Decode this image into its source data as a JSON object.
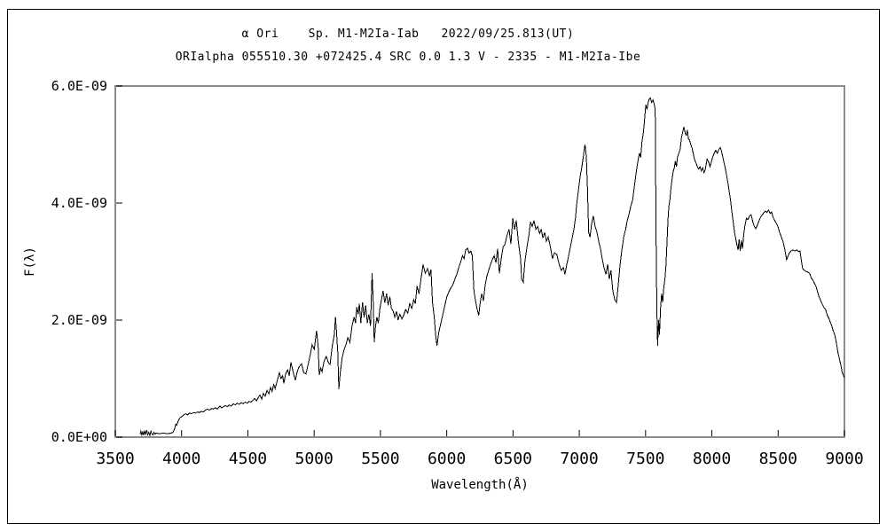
{
  "chart_data": {
    "type": "line",
    "title_line1": "α Ori    Sp. M1-M2Ia-Iab   2022/09/25.813(UT)",
    "title_line2": "ORIalpha 055510.30 +072425.4 SRC 0.0 1.3 V - 2335 - M1-M2Ia-Ibe",
    "xlabel": "Wavelength(Å)",
    "ylabel": "F(λ)",
    "xlim": [
      3500,
      9000
    ],
    "ylim_1e9": [
      0,
      6
    ],
    "grid": false,
    "legend": null,
    "colors": {
      "line": "#000000",
      "frame": "#8c8c8c",
      "background": "#ffffff",
      "text": "#000000"
    },
    "x_ticks": [
      3500,
      4000,
      4500,
      5000,
      5500,
      6000,
      6500,
      7000,
      7500,
      8000,
      8500,
      9000
    ],
    "y_ticks": [
      {
        "value_1e9": 0,
        "label": "0.0E+00"
      },
      {
        "value_1e9": 2,
        "label": "2.0E-09"
      },
      {
        "value_1e9": 4,
        "label": "4.0E-09"
      },
      {
        "value_1e9": 6,
        "label": "6.0E-09"
      }
    ],
    "series": [
      {
        "name": "spectrum-flux",
        "x": [
          3687,
          3693,
          3700,
          3707,
          3714,
          3721,
          3729,
          3737,
          3745,
          3753,
          3761,
          3769,
          3776,
          3784,
          3792,
          3801,
          3810,
          3821,
          3840,
          3861,
          3882,
          3903,
          3921,
          3935,
          3948,
          3956,
          3963,
          3975,
          3988,
          4001,
          4015,
          4030,
          4045,
          4060,
          4075,
          4090,
          4105,
          4120,
          4135,
          4150,
          4165,
          4180,
          4195,
          4210,
          4225,
          4240,
          4255,
          4270,
          4289,
          4302,
          4316,
          4330,
          4345,
          4360,
          4375,
          4390,
          4405,
          4420,
          4435,
          4450,
          4465,
          4480,
          4495,
          4510,
          4524,
          4540,
          4551,
          4565,
          4580,
          4591,
          4605,
          4617,
          4630,
          4645,
          4658,
          4671,
          4683,
          4695,
          4706,
          4720,
          4738,
          4750,
          4762,
          4771,
          4785,
          4800,
          4812,
          4825,
          4841,
          4858,
          4872,
          4886,
          4905,
          4921,
          4938,
          4955,
          4970,
          4985,
          5001,
          5018,
          5030,
          5038,
          5049,
          5060,
          5075,
          5092,
          5106,
          5120,
          5136,
          5152,
          5161,
          5169,
          5178,
          5186,
          5197,
          5211,
          5226,
          5240,
          5254,
          5270,
          5286,
          5301,
          5312,
          5321,
          5331,
          5341,
          5352,
          5365,
          5377,
          5389,
          5401,
          5413,
          5425,
          5437,
          5446,
          5453,
          5463,
          5473,
          5484,
          5496,
          5508,
          5520,
          5533,
          5546,
          5558,
          5571,
          5583,
          5596,
          5608,
          5621,
          5633,
          5646,
          5661,
          5675,
          5690,
          5706,
          5721,
          5736,
          5751,
          5763,
          5776,
          5791,
          5806,
          5822,
          5838,
          5855,
          5869,
          5881,
          5893,
          5906,
          5916,
          5926,
          5941,
          5956,
          5971,
          5986,
          6001,
          6016,
          6031,
          6046,
          6061,
          6076,
          6091,
          6106,
          6119,
          6131,
          6143,
          6156,
          6168,
          6181,
          6193,
          6205,
          6216,
          6228,
          6241,
          6253,
          6264,
          6277,
          6290,
          6303,
          6316,
          6330,
          6344,
          6358,
          6371,
          6384,
          6397,
          6411,
          6425,
          6440,
          6455,
          6470,
          6484,
          6498,
          6512,
          6525,
          6540,
          6557,
          6565,
          6577,
          6590,
          6605,
          6620,
          6632,
          6645,
          6658,
          6672,
          6686,
          6700,
          6713,
          6726,
          6739,
          6752,
          6765,
          6779,
          6798,
          6813,
          6831,
          6848,
          6865,
          6880,
          6892,
          6906,
          6920,
          6933,
          6946,
          6959,
          6971,
          6981,
          6993,
          7006,
          7018,
          7031,
          7043,
          7053,
          7061,
          7071,
          7081,
          7093,
          7106,
          7119,
          7131,
          7146,
          7160,
          7173,
          7186,
          7201,
          7214,
          7226,
          7239,
          7253,
          7268,
          7281,
          7294,
          7308,
          7321,
          7335,
          7349,
          7362,
          7376,
          7389,
          7402,
          7416,
          7429,
          7441,
          7453,
          7463,
          7473,
          7483,
          7493,
          7502,
          7511,
          7519,
          7528,
          7536,
          7546,
          7556,
          7566,
          7573,
          7579,
          7585,
          7591,
          7598,
          7605,
          7613,
          7621,
          7629,
          7637,
          7646,
          7653,
          7661,
          7669,
          7676,
          7683,
          7691,
          7699,
          7709,
          7717,
          7725,
          7733,
          7741,
          7751,
          7761,
          7771,
          7781,
          7789,
          7797,
          7806,
          7816,
          7823,
          7831,
          7841,
          7850,
          7859,
          7870,
          7881,
          7891,
          7901,
          7911,
          7921,
          7931,
          7941,
          7951,
          7964,
          7976,
          7986,
          7996,
          8006,
          8017,
          8029,
          8041,
          8053,
          8063,
          8071,
          8081,
          8091,
          8101,
          8111,
          8121,
          8131,
          8141,
          8151,
          8161,
          8171,
          8181,
          8190,
          8198,
          8206,
          8214,
          8223,
          8231,
          8240,
          8250,
          8261,
          8272,
          8284,
          8296,
          8309,
          8320,
          8331,
          8343,
          8356,
          8368,
          8381,
          8393,
          8404,
          8416,
          8428,
          8440,
          8451,
          8463,
          8475,
          8487,
          8498,
          8511,
          8524,
          8538,
          8551,
          8564,
          8576,
          8585,
          8598,
          8611,
          8626,
          8640,
          8653,
          8665,
          8676,
          8685,
          8698,
          8711,
          8723,
          8737,
          8750,
          8763,
          8775,
          8785,
          8795,
          8805,
          8818,
          8831,
          8845,
          8858,
          8871,
          8884,
          8896,
          8905,
          8915,
          8925,
          8934,
          8942,
          8950,
          8958,
          8966,
          8974,
          8982,
          8991,
          9000
        ],
        "flux_1e9": [
          0.05,
          0.1,
          0.04,
          0.09,
          0.03,
          0.11,
          0.05,
          0.12,
          0.04,
          0.08,
          0.03,
          0.1,
          0.06,
          0.04,
          0.08,
          0.05,
          0.07,
          0.06,
          0.06,
          0.07,
          0.06,
          0.06,
          0.07,
          0.08,
          0.15,
          0.22,
          0.2,
          0.28,
          0.33,
          0.35,
          0.38,
          0.4,
          0.38,
          0.41,
          0.4,
          0.42,
          0.41,
          0.43,
          0.42,
          0.44,
          0.43,
          0.46,
          0.48,
          0.46,
          0.49,
          0.48,
          0.5,
          0.48,
          0.53,
          0.5,
          0.52,
          0.54,
          0.52,
          0.55,
          0.53,
          0.57,
          0.55,
          0.58,
          0.56,
          0.59,
          0.57,
          0.6,
          0.58,
          0.61,
          0.6,
          0.63,
          0.66,
          0.62,
          0.68,
          0.72,
          0.65,
          0.75,
          0.7,
          0.8,
          0.74,
          0.85,
          0.78,
          0.9,
          0.83,
          0.95,
          1.1,
          1.0,
          1.05,
          0.92,
          1.08,
          1.15,
          1.05,
          1.28,
          1.12,
          0.97,
          1.12,
          1.2,
          1.25,
          1.1,
          1.08,
          1.25,
          1.4,
          1.58,
          1.5,
          1.82,
          1.55,
          1.06,
          1.18,
          1.12,
          1.3,
          1.38,
          1.28,
          1.24,
          1.55,
          1.75,
          2.05,
          1.8,
          1.45,
          0.82,
          1.1,
          1.35,
          1.5,
          1.58,
          1.7,
          1.62,
          1.9,
          2.05,
          1.95,
          2.22,
          2.1,
          2.28,
          1.95,
          2.3,
          2.05,
          2.25,
          1.95,
          2.1,
          1.9,
          2.8,
          2.3,
          1.62,
          1.9,
          2.05,
          1.95,
          2.2,
          2.35,
          2.5,
          2.3,
          2.45,
          2.25,
          2.4,
          2.2,
          2.15,
          2.05,
          2.15,
          2.0,
          2.1,
          2.02,
          2.08,
          2.18,
          2.12,
          2.28,
          2.2,
          2.35,
          2.28,
          2.58,
          2.45,
          2.7,
          2.95,
          2.8,
          2.88,
          2.76,
          2.86,
          2.3,
          2.05,
          1.75,
          1.56,
          1.8,
          1.95,
          2.1,
          2.25,
          2.4,
          2.48,
          2.55,
          2.6,
          2.7,
          2.78,
          2.9,
          3.0,
          3.1,
          3.05,
          3.2,
          3.23,
          3.15,
          3.18,
          3.1,
          2.5,
          2.35,
          2.2,
          2.08,
          2.3,
          2.45,
          2.33,
          2.6,
          2.75,
          2.85,
          2.95,
          3.03,
          3.1,
          2.98,
          3.22,
          2.8,
          3.05,
          3.25,
          3.3,
          3.45,
          3.55,
          3.3,
          3.74,
          3.55,
          3.7,
          3.35,
          3.05,
          2.7,
          2.65,
          3.0,
          3.25,
          3.45,
          3.68,
          3.6,
          3.7,
          3.55,
          3.6,
          3.48,
          3.55,
          3.4,
          3.5,
          3.35,
          3.42,
          3.28,
          3.05,
          3.15,
          3.12,
          2.95,
          2.85,
          2.9,
          2.78,
          2.95,
          3.1,
          3.25,
          3.4,
          3.55,
          3.75,
          4.0,
          4.2,
          4.45,
          4.6,
          4.8,
          5.0,
          4.8,
          4.3,
          3.5,
          3.42,
          3.65,
          3.78,
          3.6,
          3.52,
          3.35,
          3.22,
          3.05,
          2.9,
          2.78,
          2.95,
          2.7,
          2.85,
          2.5,
          2.35,
          2.3,
          2.6,
          2.95,
          3.2,
          3.42,
          3.55,
          3.7,
          3.82,
          3.95,
          4.05,
          4.3,
          4.52,
          4.7,
          4.85,
          4.78,
          5.05,
          5.2,
          5.45,
          5.68,
          5.6,
          5.72,
          5.78,
          5.8,
          5.72,
          5.76,
          5.68,
          5.6,
          3.5,
          2.2,
          1.56,
          2.0,
          1.75,
          2.2,
          2.45,
          2.3,
          2.55,
          2.7,
          2.9,
          3.3,
          3.72,
          3.95,
          4.05,
          4.25,
          4.4,
          4.55,
          4.6,
          4.72,
          4.62,
          4.78,
          4.85,
          4.92,
          5.12,
          5.22,
          5.3,
          5.22,
          5.15,
          5.25,
          5.1,
          5.08,
          5.0,
          4.95,
          4.85,
          4.74,
          4.68,
          4.62,
          4.58,
          4.62,
          4.55,
          4.6,
          4.52,
          4.58,
          4.75,
          4.7,
          4.62,
          4.7,
          4.78,
          4.85,
          4.9,
          4.85,
          4.92,
          4.95,
          4.9,
          4.8,
          4.7,
          4.6,
          4.48,
          4.35,
          4.2,
          4.05,
          3.85,
          3.68,
          3.5,
          3.38,
          3.28,
          3.2,
          3.38,
          3.18,
          3.36,
          3.22,
          3.45,
          3.62,
          3.74,
          3.72,
          3.78,
          3.8,
          3.68,
          3.6,
          3.56,
          3.62,
          3.7,
          3.76,
          3.8,
          3.84,
          3.86,
          3.84,
          3.88,
          3.82,
          3.85,
          3.75,
          3.7,
          3.65,
          3.6,
          3.5,
          3.42,
          3.33,
          3.2,
          3.03,
          3.1,
          3.15,
          3.18,
          3.2,
          3.18,
          3.2,
          3.17,
          3.18,
          3.0,
          2.88,
          2.85,
          2.83,
          2.82,
          2.8,
          2.72,
          2.68,
          2.62,
          2.58,
          2.5,
          2.42,
          2.35,
          2.28,
          2.22,
          2.18,
          2.08,
          2.02,
          1.95,
          1.9,
          1.82,
          1.76,
          1.68,
          1.58,
          1.46,
          1.38,
          1.3,
          1.22,
          1.12,
          1.06,
          1.02
        ]
      }
    ]
  }
}
